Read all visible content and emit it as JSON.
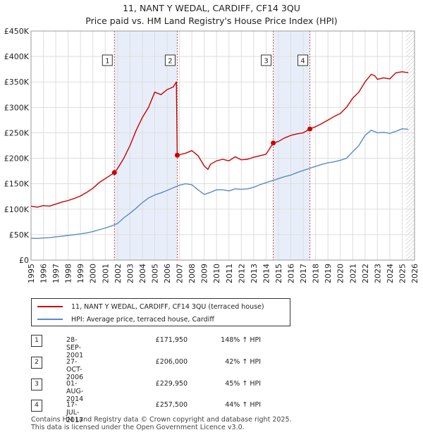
{
  "title_line1": "11, NANT Y WEDAL, CARDIFF, CF14 3QU",
  "title_line2": "Price paid vs. HM Land Registry's House Price Index (HPI)",
  "legend": {
    "property_label": "11, NANT Y WEDAL, CARDIFF, CF14 3QU (terraced house)",
    "hpi_label": "HPI: Average price, terraced house, Cardiff"
  },
  "transactions": [
    {
      "num": "1",
      "date": "28-SEP-2001",
      "price": "£171,950",
      "hpi": "148% ↑ HPI"
    },
    {
      "num": "2",
      "date": "27-OCT-2006",
      "price": "£206,000",
      "hpi": "42% ↑ HPI"
    },
    {
      "num": "3",
      "date": "01-AUG-2014",
      "price": "£229,950",
      "hpi": "45% ↑ HPI"
    },
    {
      "num": "4",
      "date": "17-JUL-2017",
      "price": "£257,500",
      "hpi": "44% ↑ HPI"
    }
  ],
  "footer": {
    "line1": "Contains HM Land Registry data © Crown copyright and database right 2025.",
    "line2": "This data is licensed under the Open Government Licence v3.0."
  },
  "colors": {
    "property_line": "#cc0000",
    "hpi_line": "#5b8ac6",
    "grid": "#dddddd",
    "shade": "#e8eef9"
  },
  "chart_data": {
    "type": "line",
    "title": "Price paid vs. HM Land Registry's House Price Index (HPI)",
    "xlabel": "",
    "ylabel": "",
    "xlim": [
      1995,
      2026
    ],
    "ylim": [
      0,
      450000
    ],
    "y_ticks": [
      0,
      50000,
      100000,
      150000,
      200000,
      250000,
      300000,
      350000,
      400000,
      450000
    ],
    "y_tick_labels": [
      "£0",
      "£50K",
      "£100K",
      "£150K",
      "£200K",
      "£250K",
      "£300K",
      "£350K",
      "£400K",
      "£450K"
    ],
    "x_ticks": [
      1995,
      1996,
      1997,
      1998,
      1999,
      2000,
      2001,
      2002,
      2003,
      2004,
      2005,
      2006,
      2007,
      2008,
      2009,
      2010,
      2011,
      2012,
      2013,
      2014,
      2015,
      2016,
      2017,
      2018,
      2019,
      2020,
      2021,
      2022,
      2023,
      2024,
      2025,
      2026
    ],
    "shaded_periods": [
      [
        2001.74,
        2006.82
      ],
      [
        2014.58,
        2017.54
      ]
    ],
    "markers": [
      {
        "label": "1",
        "x": 2001.74,
        "y": 171950
      },
      {
        "label": "2",
        "x": 2006.82,
        "y": 206000
      },
      {
        "label": "3",
        "x": 2014.58,
        "y": 229950
      },
      {
        "label": "4",
        "x": 2017.54,
        "y": 257500
      }
    ],
    "forecast_from": 2025.3,
    "series": [
      {
        "name": "11, NANT Y WEDAL, CARDIFF, CF14 3QU (terraced house)",
        "x": [
          1995,
          1995.5,
          1996,
          1996.5,
          1997,
          1997.5,
          1998,
          1998.5,
          1999,
          1999.5,
          2000,
          2000.5,
          2001,
          2001.5,
          2001.74,
          2002,
          2002.5,
          2003,
          2003.5,
          2004,
          2004.5,
          2005,
          2005.5,
          2006,
          2006.5,
          2006.75,
          2006.82,
          2007,
          2007.5,
          2008,
          2008.5,
          2009,
          2009.3,
          2009.5,
          2010,
          2010.5,
          2011,
          2011.5,
          2012,
          2012.5,
          2013,
          2013.5,
          2014,
          2014.58,
          2015,
          2015.5,
          2016,
          2016.5,
          2017,
          2017.54,
          2018,
          2018.5,
          2019,
          2019.5,
          2020,
          2020.5,
          2021,
          2021.5,
          2022,
          2022.5,
          2022.8,
          2023,
          2023.5,
          2024,
          2024.5,
          2025,
          2025.5
        ],
        "values": [
          106000,
          104000,
          107000,
          106000,
          110000,
          114000,
          117000,
          121000,
          126000,
          133000,
          141000,
          152000,
          160000,
          168000,
          171950,
          180000,
          200000,
          225000,
          255000,
          280000,
          300000,
          330000,
          325000,
          335000,
          340000,
          350000,
          206000,
          207000,
          210000,
          215000,
          205000,
          185000,
          178000,
          188000,
          195000,
          198000,
          195000,
          203000,
          197000,
          198000,
          202000,
          205000,
          208000,
          229950,
          233000,
          240000,
          245000,
          248000,
          250000,
          257500,
          262000,
          268000,
          275000,
          282000,
          288000,
          300000,
          318000,
          330000,
          350000,
          365000,
          362000,
          355000,
          358000,
          356000,
          368000,
          370000,
          368000
        ]
      },
      {
        "name": "HPI: Average price, terraced house, Cardiff",
        "x": [
          1995,
          1995.5,
          1996,
          1996.5,
          1997,
          1997.5,
          1998,
          1998.5,
          1999,
          1999.5,
          2000,
          2000.5,
          2001,
          2001.5,
          2002,
          2002.5,
          2003,
          2003.5,
          2004,
          2004.5,
          2005,
          2005.5,
          2006,
          2006.5,
          2007,
          2007.5,
          2008,
          2008.5,
          2009,
          2009.5,
          2010,
          2010.5,
          2011,
          2011.5,
          2012,
          2012.5,
          2013,
          2013.5,
          2014,
          2014.5,
          2015,
          2015.5,
          2016,
          2016.5,
          2017,
          2017.5,
          2018,
          2018.5,
          2019,
          2019.5,
          2020,
          2020.5,
          2021,
          2021.5,
          2022,
          2022.5,
          2023,
          2023.5,
          2024,
          2024.5,
          2025,
          2025.5
        ],
        "values": [
          43000,
          42500,
          43500,
          44000,
          45500,
          47000,
          48500,
          50000,
          51500,
          53500,
          56000,
          59500,
          63000,
          67000,
          72000,
          83000,
          92000,
          102000,
          113000,
          122000,
          128000,
          132000,
          137000,
          142000,
          147000,
          150000,
          148000,
          138000,
          129000,
          133000,
          138000,
          138000,
          136000,
          140000,
          139000,
          140000,
          143000,
          148000,
          152000,
          156000,
          160000,
          164000,
          167000,
          172000,
          176000,
          180000,
          184000,
          188000,
          191000,
          193000,
          196000,
          200000,
          213000,
          225000,
          245000,
          255000,
          250000,
          251000,
          249000,
          253000,
          258000,
          257000
        ]
      }
    ]
  }
}
